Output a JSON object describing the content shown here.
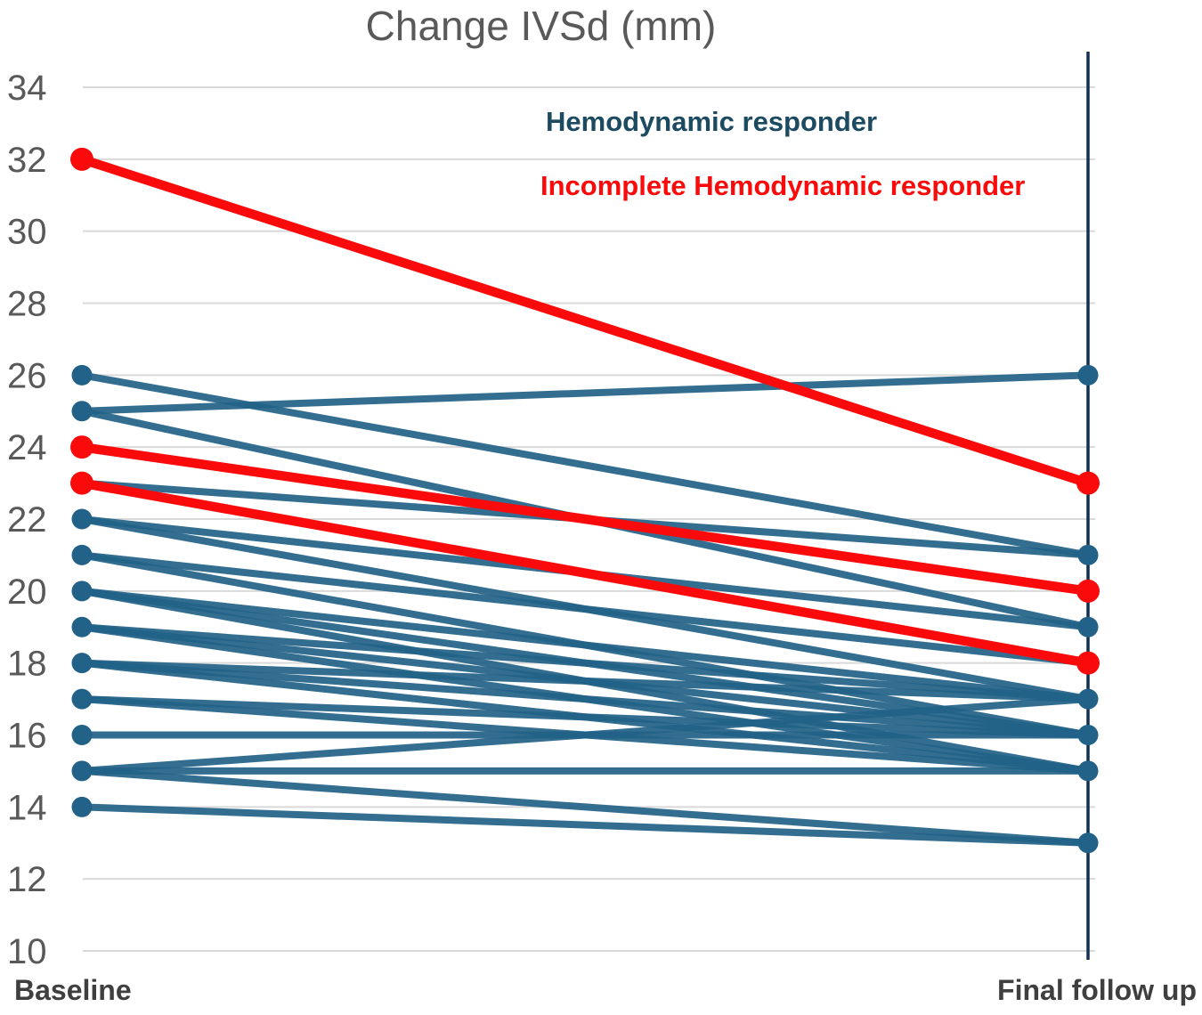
{
  "chart_data": {
    "type": "line",
    "variant": "paired-slope",
    "title": "Change IVSd (mm)",
    "categories": [
      "Baseline",
      "Final follow up"
    ],
    "ylim": [
      10,
      34
    ],
    "yticks": [
      10,
      12,
      14,
      16,
      18,
      20,
      22,
      24,
      26,
      28,
      30,
      32,
      34
    ],
    "grid": true,
    "legend_position": "top-right-inside",
    "legend": [
      {
        "label": "Hemodynamic responder",
        "color": "#1C4A60"
      },
      {
        "label": "Incomplete Hemodynamic responder",
        "color": "#FA0A0A"
      }
    ],
    "series": [
      {
        "name": "Hemodynamic responder",
        "color": "#226288",
        "line_width": 8,
        "pairs": [
          [
            26,
            21
          ],
          [
            25,
            26
          ],
          [
            25,
            19
          ],
          [
            23,
            21
          ],
          [
            22,
            19
          ],
          [
            22,
            17
          ],
          [
            21,
            18
          ],
          [
            21,
            16
          ],
          [
            20,
            17
          ],
          [
            20,
            16
          ],
          [
            20,
            15
          ],
          [
            19,
            17
          ],
          [
            19,
            16
          ],
          [
            19,
            15
          ],
          [
            18,
            17
          ],
          [
            18,
            16
          ],
          [
            18,
            15
          ],
          [
            17,
            16
          ],
          [
            17,
            15
          ],
          [
            16,
            16
          ],
          [
            15,
            17
          ],
          [
            15,
            15
          ],
          [
            15,
            13
          ],
          [
            14,
            13
          ]
        ]
      },
      {
        "name": "Incomplete Hemodynamic responder",
        "color": "#FA0A0A",
        "line_width": 10.5,
        "pairs": [
          [
            32,
            23
          ],
          [
            24,
            20
          ],
          [
            23,
            18
          ]
        ]
      }
    ],
    "colors": {
      "grid": "#D9D9D9",
      "axis": "#14304F",
      "title": "#595959",
      "tick_label": "#595959",
      "category_label": "#3F3F3F"
    }
  }
}
